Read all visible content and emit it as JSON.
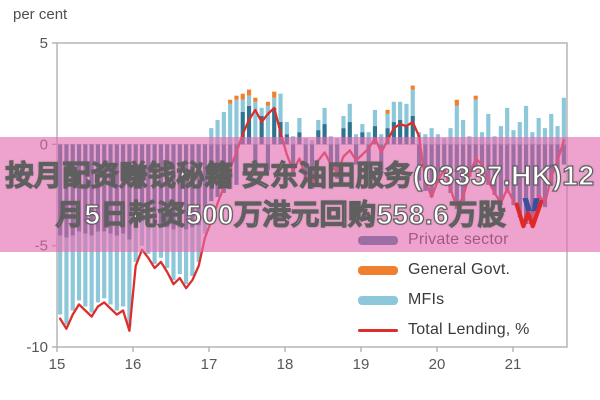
{
  "panel": {
    "axis_title": "per cent"
  },
  "overlay": {
    "line1": "按月配资赚钱秘籍 安东油田服务(03337.HK)12",
    "line2": "月5日耗资500万港元回购558.6万股",
    "band_color": "rgba(226,106,175,0.62)",
    "text_color": "#ffffff",
    "text_outline_color": "#5f5f5f",
    "logo_colors": {
      "blue": "#3a4fa0",
      "red": "#e02828"
    }
  },
  "legend": {
    "position": "bottom-right",
    "items": [
      {
        "label": "Private sector",
        "color": "#2e7490",
        "type": "bar"
      },
      {
        "label": "General Govt.",
        "color": "#ef8030",
        "type": "bar"
      },
      {
        "label": "MFIs",
        "color": "#8cc7da",
        "type": "bar"
      },
      {
        "label": "Total Lending, %",
        "color": "#dc2f2c",
        "type": "line"
      }
    ]
  },
  "chart_data": {
    "type": "bar",
    "subtype": "monthly stacked bars with line overlay",
    "title": "",
    "ylabel": "per cent",
    "ylim": [
      -10,
      5
    ],
    "y_ticks": [
      "5",
      "0",
      "-5",
      "-10"
    ],
    "x_ticks": [
      "15",
      "16",
      "17",
      "18",
      "19",
      "20",
      "21"
    ],
    "x_start": "2015-01",
    "x_end": "2021-09",
    "grid": false,
    "frame_color": "#b0b0b0",
    "tick_label_color": "#575757",
    "series": [
      {
        "name": "Private sector",
        "kind": "bar",
        "color": "#2e7490",
        "values": [
          -4.5,
          -4.6,
          -4.5,
          -4.3,
          -4.4,
          -4.5,
          -4.3,
          -4.3,
          -4.4,
          -4.5,
          -4.4,
          -4.7,
          -4.0,
          -3.8,
          -3.9,
          -4.0,
          -3.9,
          -4.1,
          -4.2,
          -4.1,
          -4.2,
          -4.1,
          -4.0,
          -3.1,
          -2.8,
          -2.6,
          -2.4,
          -2.2,
          -2.0,
          1.6,
          1.9,
          -1.5,
          1.4,
          -1.3,
          1.8,
          1.1,
          0.5,
          -1.6,
          0.6,
          -1.9,
          -2.2,
          0.7,
          1.0,
          -1.3,
          -1.7,
          0.8,
          1.1,
          -1.0,
          0.6,
          -1.2,
          0.9,
          -1.4,
          0.8,
          1.1,
          1.2,
          0.9,
          1.4,
          -1.8,
          -2.3,
          -2.6,
          -1.9,
          -1.4,
          -2.4,
          -3.2,
          -2.8,
          -1.6,
          -1.2,
          -1.5,
          -2.0,
          -2.5,
          -3.0,
          -2.4,
          -3.0,
          -3.6,
          -4.4,
          -3.8,
          -2.8,
          -3.1,
          -2.0,
          -1.4,
          -1.0
        ]
      },
      {
        "name": "MFIs",
        "kind": "bar",
        "color": "#8cc7da",
        "values": [
          -3.9,
          -4.3,
          -3.7,
          -3.4,
          -3.6,
          -3.8,
          -3.5,
          -3.3,
          -3.5,
          -3.7,
          -3.6,
          -4.3,
          -1.8,
          -1.2,
          -1.5,
          -1.9,
          -1.7,
          -2.0,
          -2.5,
          -2.3,
          -2.7,
          -2.4,
          -1.8,
          -1.3,
          0.8,
          1.2,
          1.6,
          2.0,
          2.2,
          0.6,
          0.5,
          2.1,
          0.4,
          1.9,
          0.5,
          1.4,
          0.6,
          0.4,
          0.7,
          0.3,
          0.2,
          0.5,
          0.8,
          0.4,
          0.3,
          0.6,
          0.9,
          0.5,
          0.4,
          0.6,
          0.8,
          0.5,
          0.7,
          1.0,
          0.9,
          1.1,
          1.3,
          0.6,
          0.5,
          0.8,
          0.5,
          0.3,
          0.8,
          1.9,
          1.2,
          0.4,
          2.2,
          0.6,
          1.5,
          0.4,
          0.9,
          1.8,
          0.7,
          1.1,
          1.9,
          0.6,
          1.3,
          0.8,
          1.5,
          0.9,
          2.3
        ]
      },
      {
        "name": "General Govt.",
        "kind": "bar",
        "color": "#ef8030",
        "values": [
          0,
          0,
          0,
          0,
          0,
          0,
          0,
          0,
          0,
          0,
          0,
          0,
          0,
          0,
          0,
          0,
          0,
          0,
          0,
          0,
          0,
          0,
          0,
          0,
          0,
          0,
          0,
          0.2,
          0.2,
          0.3,
          0.3,
          0.2,
          0,
          0.2,
          0.3,
          0,
          0,
          0,
          0,
          0,
          0,
          0,
          0,
          0,
          0,
          0,
          0,
          0,
          0,
          0,
          0,
          0,
          0.2,
          0,
          0,
          0,
          0.2,
          0,
          0,
          0,
          0,
          0,
          0,
          0.3,
          0,
          0,
          0.2,
          0,
          0,
          0,
          0,
          0,
          0,
          0,
          0,
          0,
          0,
          0,
          0,
          0,
          0
        ]
      },
      {
        "name": "Total Lending, %",
        "kind": "line",
        "color": "#dc2f2c",
        "values": [
          -8.6,
          -9.1,
          -8.4,
          -7.9,
          -8.2,
          -8.5,
          -8.0,
          -7.8,
          -8.1,
          -8.4,
          -8.2,
          -9.2,
          -6.0,
          -5.2,
          -5.6,
          -6.1,
          -5.8,
          -6.3,
          -6.9,
          -6.6,
          -7.1,
          -6.7,
          -6.0,
          -4.6,
          -3.8,
          -2.9,
          -2.1,
          -1.2,
          -0.4,
          0.5,
          1.2,
          1.7,
          1.1,
          1.5,
          1.8,
          0.6,
          -0.5,
          -1.3,
          -0.7,
          -1.6,
          -2.0,
          -0.8,
          -0.4,
          -1.0,
          -1.4,
          -0.6,
          -0.3,
          -0.8,
          -0.5,
          -0.2,
          0.3,
          -0.4,
          0.2,
          0.8,
          1.0,
          0.9,
          1.1,
          0.4,
          -1.8,
          -2.6,
          -1.8,
          -1.2,
          -2.2,
          -3.1,
          -2.6,
          -1.5,
          -0.7,
          -1.0,
          -1.8,
          -2.4,
          -2.9,
          -2.2,
          -2.8,
          -3.4,
          -4.3,
          -3.6,
          -2.5,
          -2.9,
          -1.6,
          -0.8,
          0.2
        ]
      }
    ]
  }
}
